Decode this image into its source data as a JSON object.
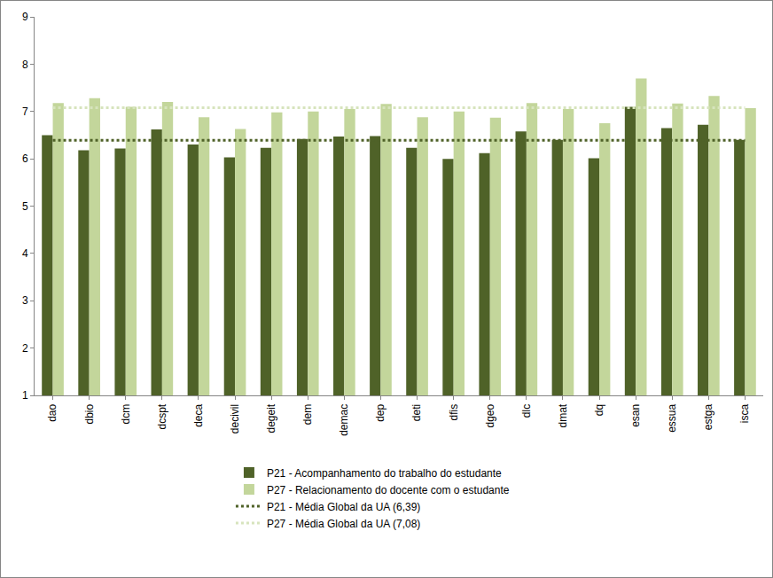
{
  "chart_data": {
    "type": "bar",
    "categories": [
      "dao",
      "dbio",
      "dcm",
      "dcspt",
      "deca",
      "decivil",
      "degeit",
      "dem",
      "demac",
      "dep",
      "deti",
      "dfis",
      "dgeo",
      "dlc",
      "dmat",
      "dq",
      "esan",
      "essua",
      "estga",
      "isca"
    ],
    "series": [
      {
        "name": "P21 - Acompanhamento do trabalho do estudante",
        "type": "bar",
        "color": "#4f6228",
        "values": [
          6.5,
          6.18,
          6.22,
          6.62,
          6.3,
          6.03,
          6.23,
          6.42,
          6.47,
          6.48,
          6.23,
          6.0,
          6.12,
          6.58,
          6.4,
          6.01,
          7.1,
          6.65,
          6.72,
          6.4
        ]
      },
      {
        "name": "P27 - Relacionamento do docente com o estudante",
        "type": "bar",
        "color": "#c3d69b",
        "values": [
          7.18,
          7.28,
          7.1,
          7.2,
          6.88,
          6.63,
          6.98,
          7.0,
          7.05,
          7.16,
          6.88,
          7.0,
          6.87,
          7.18,
          7.05,
          6.75,
          7.7,
          7.17,
          7.33,
          7.07
        ]
      },
      {
        "name": "P21 - Média Global da UA (6,39)",
        "type": "line",
        "line_style": "dotted",
        "color": "#4f6228",
        "values": [
          6.39,
          6.39,
          6.39,
          6.39,
          6.39,
          6.39,
          6.39,
          6.39,
          6.39,
          6.39,
          6.39,
          6.39,
          6.39,
          6.39,
          6.39,
          6.39,
          6.39,
          6.39,
          6.39,
          6.39
        ]
      },
      {
        "name": "P27 - Média Global da UA (7,08)",
        "type": "line",
        "line_style": "dotted",
        "color": "#d7e4bd",
        "values": [
          7.08,
          7.08,
          7.08,
          7.08,
          7.08,
          7.08,
          7.08,
          7.08,
          7.08,
          7.08,
          7.08,
          7.08,
          7.08,
          7.08,
          7.08,
          7.08,
          7.08,
          7.08,
          7.08,
          7.08
        ]
      }
    ],
    "ylim": [
      1,
      9
    ],
    "yticks": [
      1,
      2,
      3,
      4,
      5,
      6,
      7,
      8,
      9
    ],
    "grid": false,
    "legend": "bottom"
  }
}
